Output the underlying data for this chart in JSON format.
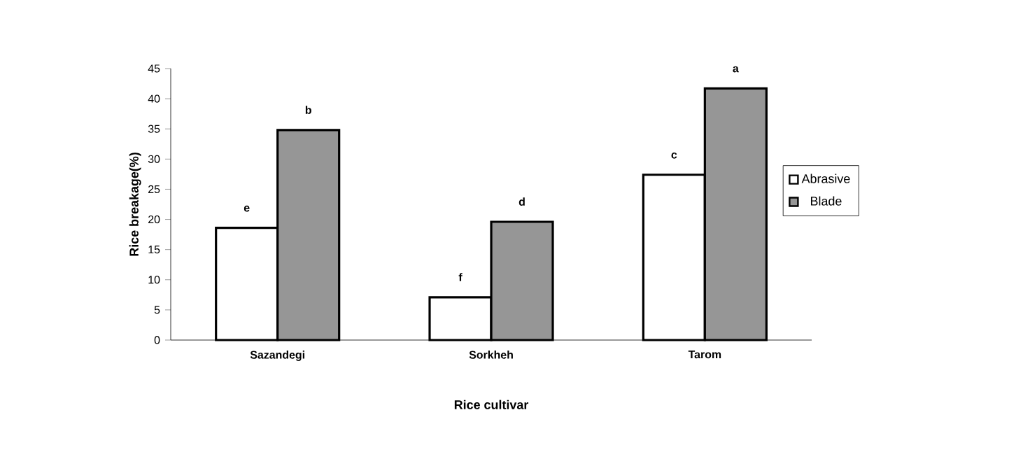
{
  "chart_data": {
    "type": "bar",
    "xlabel": "Rice cultivar",
    "ylabel": "Rice breakage(%)",
    "categories": [
      "Sazandegi",
      "Sorkheh",
      "Tarom"
    ],
    "series": [
      {
        "name": "Abrasive",
        "color": "#ffffff",
        "values": [
          18.6,
          7.1,
          27.4
        ],
        "value_labels": [
          "e",
          "f",
          "c"
        ]
      },
      {
        "name": "Blade",
        "color": "#969696",
        "values": [
          34.8,
          19.6,
          41.7
        ],
        "value_labels": [
          "b",
          "d",
          "a"
        ]
      }
    ],
    "ylim": [
      0,
      45
    ],
    "yticks": [
      0,
      5,
      10,
      15,
      20,
      25,
      30,
      35,
      40,
      45
    ],
    "legend": "right",
    "grid": false
  }
}
